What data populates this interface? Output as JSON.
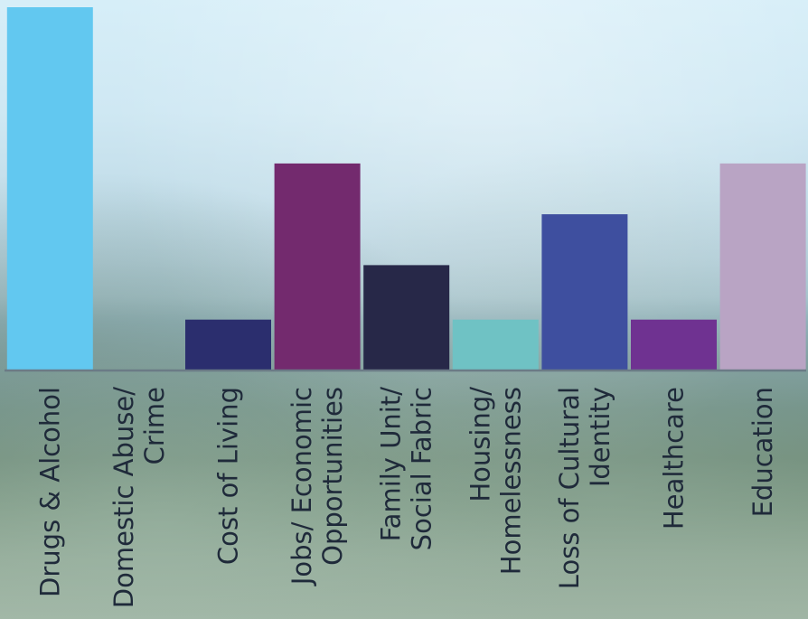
{
  "chart_data": {
    "type": "bar",
    "categories": [
      [
        "Drugs & Alcohol"
      ],
      [
        "Domestic Abuse/",
        "Crime"
      ],
      [
        "Cost of Living"
      ],
      [
        "Jobs/ Economic",
        "Opportunities"
      ],
      [
        "Family Unit/",
        "Social Fabric"
      ],
      [
        "Housing/",
        "Homelessness"
      ],
      [
        "Loss of Cultural",
        "Identity"
      ],
      [
        "Healthcare"
      ],
      [
        "Education"
      ]
    ],
    "values": [
      100,
      0,
      14,
      57,
      29,
      14,
      43,
      14,
      57
    ],
    "ylim": [
      0,
      100
    ],
    "colors": [
      "#62c8f0",
      "#3a4a8c",
      "#2b2e6e",
      "#732a6e",
      "#272848",
      "#6fc2c4",
      "#3e4f9f",
      "#6f3291",
      "#b9a4c4"
    ],
    "grid": false,
    "legend": "none"
  }
}
